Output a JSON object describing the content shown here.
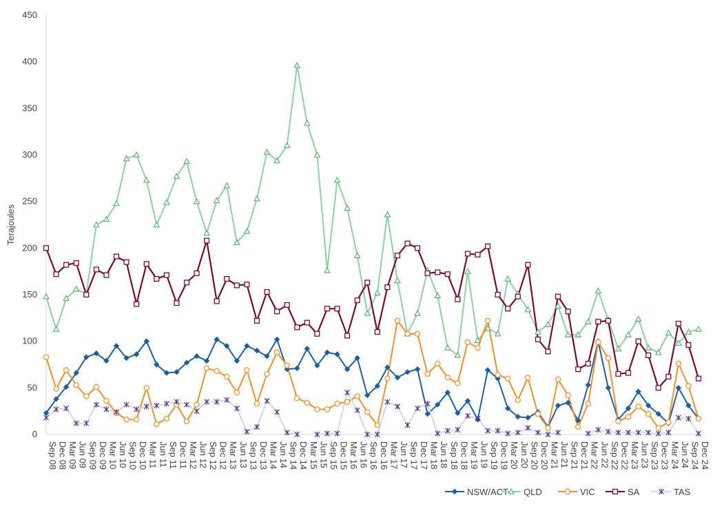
{
  "chart_data": {
    "type": "line",
    "ylabel": "Terajoules",
    "ylim": [
      0,
      450
    ],
    "y_ticks": [
      0,
      50,
      100,
      150,
      200,
      250,
      300,
      350,
      400,
      450
    ],
    "grid": false,
    "legend_position": "bottom-right",
    "categories": [
      "Sep 08",
      "Dec 08",
      "Mar 09",
      "Jun 09",
      "Sep 09",
      "Dec 09",
      "Mar 10",
      "Jun 10",
      "Sep 10",
      "Dec 10",
      "Mar 11",
      "Jun 11",
      "Sep 11",
      "Dec 11",
      "Mar 12",
      "Jun 12",
      "Sep 12",
      "Dec 12",
      "Mar 13",
      "Jun 13",
      "Sep 13",
      "Dec 13",
      "Mar 14",
      "Jun 14",
      "Sep 14",
      "Dec 14",
      "Mar 15",
      "Jun 15",
      "Sep 15",
      "Dec 15",
      "Mar 16",
      "Jun 16",
      "Sep 16",
      "Dec 16",
      "Mar 17",
      "Jun 17",
      "Sep 17",
      "Dec 17",
      "Mar 18",
      "Jun 18",
      "Sep 18",
      "Dec 18",
      "Mar 19",
      "Jun 19",
      "Sep 19",
      "Dec 19",
      "Mar 20",
      "Jun 20",
      "Sep 20",
      "Dec 20",
      "Mar 21",
      "Jun 21",
      "Sep 21",
      "Dec 21",
      "Mar 22",
      "Jun 22",
      "Sep 22",
      "Dec 22",
      "Mar 23",
      "Jun 23",
      "Sep 23",
      "Dec 23",
      "Mar 24",
      "Jun 24",
      "Sep 24",
      "Dec 24"
    ],
    "series": [
      {
        "name": "NSW/ACT",
        "color": "#1f5f9f",
        "marker": "diamond",
        "values": [
          23,
          38,
          51,
          66,
          83,
          87,
          79,
          95,
          82,
          86,
          100,
          75,
          66,
          67,
          77,
          84,
          79,
          102,
          95,
          79,
          95,
          90,
          84,
          102,
          70,
          71,
          92,
          74,
          88,
          86,
          70,
          82,
          42,
          52,
          72,
          61,
          67,
          70,
          22,
          32,
          45,
          23,
          36,
          16,
          69,
          60,
          28,
          19,
          18,
          24,
          8,
          31,
          34,
          15,
          53,
          100,
          50,
          16,
          28,
          46,
          31,
          22,
          12,
          50,
          31,
          17
        ]
      },
      {
        "name": "QLD",
        "color": "#8fd19e",
        "marker": "triangle",
        "values": [
          148,
          113,
          146,
          156,
          151,
          225,
          231,
          248,
          296,
          300,
          273,
          225,
          249,
          277,
          293,
          250,
          216,
          251,
          267,
          206,
          218,
          253,
          303,
          294,
          310,
          396,
          334,
          300,
          176,
          273,
          243,
          192,
          130,
          152,
          236,
          165,
          108,
          130,
          176,
          149,
          93,
          85,
          175,
          101,
          114,
          108,
          167,
          151,
          134,
          110,
          118,
          138,
          107,
          107,
          121,
          154,
          123,
          92,
          107,
          124,
          93,
          88,
          109,
          98,
          110,
          113
        ]
      },
      {
        "name": "VIC",
        "color": "#f28e2b",
        "marker": "circle",
        "values": [
          83,
          49,
          69,
          53,
          41,
          51,
          36,
          23,
          16,
          16,
          50,
          11,
          17,
          32,
          14,
          32,
          71,
          68,
          62,
          45,
          69,
          33,
          65,
          88,
          74,
          39,
          34,
          27,
          27,
          33,
          35,
          41,
          24,
          10,
          60,
          122,
          108,
          108,
          65,
          76,
          61,
          55,
          99,
          93,
          122,
          64,
          60,
          37,
          61,
          22,
          7,
          59,
          42,
          8,
          33,
          99,
          82,
          14,
          19,
          30,
          22,
          7,
          13,
          76,
          52,
          17
        ]
      },
      {
        "name": "SA",
        "color": "#7a0a24",
        "marker": "square",
        "values": [
          200,
          172,
          182,
          184,
          150,
          177,
          171,
          191,
          185,
          140,
          183,
          167,
          171,
          141,
          163,
          173,
          208,
          143,
          167,
          160,
          161,
          122,
          153,
          132,
          139,
          115,
          120,
          108,
          135,
          135,
          106,
          144,
          163,
          110,
          158,
          192,
          205,
          200,
          173,
          174,
          172,
          145,
          194,
          193,
          202,
          150,
          135,
          148,
          182,
          102,
          89,
          148,
          132,
          70,
          76,
          121,
          122,
          65,
          66,
          100,
          85,
          50,
          62,
          119,
          96,
          60
        ]
      },
      {
        "name": "TAS",
        "color": "#4b2e83",
        "marker": "star",
        "values": [
          18,
          27,
          28,
          12,
          12,
          32,
          27,
          24,
          32,
          27,
          30,
          31,
          33,
          35,
          32,
          25,
          35,
          35,
          37,
          28,
          3,
          8,
          36,
          24,
          2,
          0,
          null,
          0,
          1,
          1,
          45,
          26,
          0,
          0,
          35,
          30,
          10,
          28,
          33,
          1,
          4,
          5,
          20,
          17,
          4,
          4,
          1,
          2,
          7,
          2,
          0,
          2,
          null,
          null,
          1,
          5,
          3,
          2,
          2,
          2,
          2,
          1,
          2,
          18,
          17,
          1
        ]
      }
    ]
  }
}
